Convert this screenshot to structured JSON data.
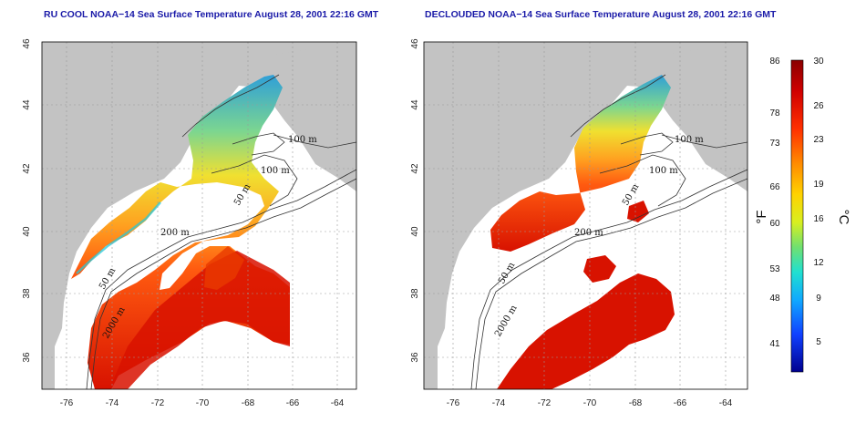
{
  "panels": [
    {
      "title": "RU COOL NOAA−14 Sea Surface Temperature August 28, 2001 22:16 GMT",
      "lat_ticks": [
        "36",
        "38",
        "40",
        "42",
        "44",
        "46"
      ],
      "lon_ticks": [
        "-76",
        "-74",
        "-72",
        "-70",
        "-68",
        "-66",
        "-64"
      ],
      "contour_labels": [
        "100 m",
        "100 m",
        "50 m",
        "200 m",
        "50 m",
        "2000 m"
      ]
    },
    {
      "title": "DECLOUDED NOAA−14 Sea Surface Temperature August 28, 2001 22:16 GMT",
      "lat_ticks": [
        "36",
        "38",
        "40",
        "42",
        "44",
        "46"
      ],
      "lon_ticks": [
        "-76",
        "-74",
        "-72",
        "-70",
        "-68",
        "-66",
        "-64"
      ],
      "contour_labels": [
        "100 m",
        "100 m",
        "50 m",
        "200 m",
        "50 m",
        "2000 m"
      ]
    }
  ],
  "colorbar": {
    "fahrenheit_labels": [
      "86",
      "78",
      "73",
      "66",
      "60",
      "53",
      "48",
      "41"
    ],
    "celsius_labels": [
      "30",
      "26",
      "23",
      "19",
      "16",
      "12",
      "9",
      "5"
    ],
    "fahrenheit_unit": "°F",
    "celsius_unit": "°C",
    "colors": [
      "#8a0000",
      "#d00000",
      "#ff3000",
      "#ff8a00",
      "#ffd200",
      "#d8ef20",
      "#70e070",
      "#20e0d0",
      "#10a8ff",
      "#1040ff",
      "#00008f"
    ]
  },
  "map_colors": {
    "land": "#c3c3c3",
    "no_data": "#ffffff",
    "contour": "#333333",
    "grid": "#9a9a9a"
  }
}
